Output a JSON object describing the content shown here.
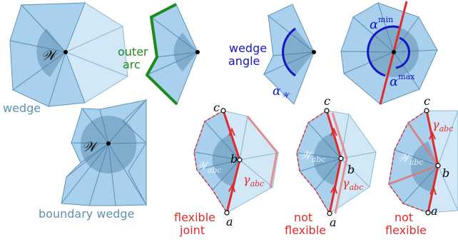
{
  "labels": {
    "wedge": "wedge",
    "outer_arc_line1": "outer",
    "outer_arc_line2": "arc",
    "wedge_angle_line1": "wedge",
    "wedge_angle_line2": "angle",
    "boundary_wedge": "boundary wedge",
    "flexible_joint_line1": "flexible",
    "flexible_joint_line2": "joint",
    "not_flexible_1_line1": "not",
    "not_flexible_1_line2": "flexible",
    "not_flexible_2_line1": "not",
    "not_flexible_2_line2": "flexible"
  },
  "math": {
    "W": "𝒲",
    "W_abc": "𝒲",
    "abc_sub": "abc",
    "alpha": "α",
    "alpha_W_sub": "𝒲",
    "min": "min",
    "max": "max",
    "gamma": "γ",
    "a": "a",
    "b": "b",
    "c": "c"
  },
  "colors": {
    "fill": "#a9d1ee",
    "fill_light": "#d3e8f6",
    "edge": "#5f93b6",
    "disk": "#4d7fa3",
    "green": "#1d8a1d",
    "blue": "#1414c8",
    "red": "#e02b2b",
    "label_teal": "#5a92ad"
  }
}
